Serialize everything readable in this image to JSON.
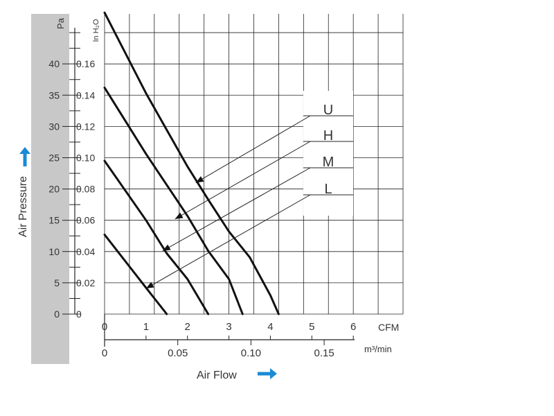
{
  "chart_data": {
    "type": "line",
    "y_unit_primary": "Pa",
    "y_unit_secondary": "In H₂O",
    "ylabel": "Air Pressure",
    "xlabel": "Air Flow",
    "x_unit_primary": "CFM",
    "x_unit_secondary": "m³/min",
    "xlim": [
      0,
      7.2
    ],
    "ylim": [
      0,
      48
    ],
    "grid": true,
    "y_ticks_pa": [
      "0",
      "5",
      "10",
      "15",
      "20",
      "25",
      "30",
      "35",
      "40"
    ],
    "y_ticks_inh2o": [
      "0",
      "0.02",
      "0.04",
      "0.06",
      "0.08",
      "0.10",
      "0.12",
      "0.14",
      "0.16"
    ],
    "x_ticks_cfm": [
      "0",
      "1",
      "2",
      "3",
      "4",
      "5",
      "6"
    ],
    "x_ticks_m3min": [
      "0",
      "0.05",
      "0.10",
      "0.15"
    ],
    "series": [
      {
        "name": "U",
        "points": [
          [
            0,
            48.2
          ],
          [
            1,
            35.3
          ],
          [
            2,
            23.6
          ],
          [
            2.5,
            18.3
          ],
          [
            3,
            13.2
          ],
          [
            3.5,
            9.1
          ],
          [
            4,
            3.0
          ],
          [
            4.2,
            0
          ]
        ]
      },
      {
        "name": "H",
        "points": [
          [
            0,
            36.2
          ],
          [
            1,
            25.6
          ],
          [
            2,
            15.7
          ],
          [
            2.5,
            10.1
          ],
          [
            3,
            5.6
          ],
          [
            3.33,
            0
          ]
        ]
      },
      {
        "name": "M",
        "points": [
          [
            0,
            24.5
          ],
          [
            1,
            15.0
          ],
          [
            1.5,
            9.7
          ],
          [
            2,
            5.6
          ],
          [
            2.5,
            0
          ]
        ]
      },
      {
        "name": "L",
        "points": [
          [
            0,
            12.7
          ],
          [
            1,
            4.2
          ],
          [
            1.5,
            0
          ]
        ]
      }
    ],
    "legend": {
      "position": "right",
      "labels": [
        "U",
        "H",
        "M",
        "L"
      ],
      "arrow_targets": [
        [
          2.2,
          21.0
        ],
        [
          1.7,
          15.2
        ],
        [
          1.4,
          10.1
        ],
        [
          1.0,
          4.1
        ]
      ]
    },
    "colors": {
      "axis_panel": "#c8c8c8",
      "grid": "#222222",
      "curve": "#111111",
      "arrow_blue": "#1a8ad4"
    }
  }
}
